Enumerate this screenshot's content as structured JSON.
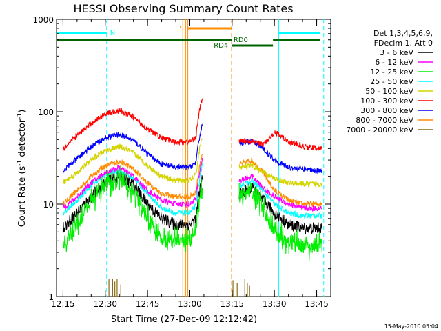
{
  "chart_data": {
    "type": "line",
    "title": "HESSI Observing Summary Count Rates",
    "xlabel": "Start Time (27-Dec-09 12:12:42)",
    "ylabel": "Count Rate (s",
    "ylabel_sup": "-1",
    "ylabel_mid": " detector",
    "ylabel_sup2": "-1",
    "ylabel_end": ")",
    "yscale": "log",
    "ylim": [
      1,
      1000
    ],
    "xlim": [
      "12:12:42",
      "13:50:00"
    ],
    "x_ticks": [
      "12:15",
      "12:30",
      "12:45",
      "13:00",
      "13:15",
      "13:30",
      "13:45"
    ],
    "y_ticks": [
      "1",
      "10",
      "100",
      "1000"
    ],
    "legend_header": [
      "Det 1,3,4,5,6,9,",
      "FDecim 1, Att 0"
    ],
    "footer_date": "15-May-2010 05:04",
    "flags": [
      {
        "name": "N",
        "color": "#00ffff"
      },
      {
        "name": "S",
        "color": "#ff8c00"
      },
      {
        "name": "RD0",
        "color": "#006400"
      },
      {
        "name": "RD4",
        "color": "#006400"
      }
    ],
    "series": [
      {
        "name": "3 - 6 keV",
        "color": "#000000",
        "x": [
          "12:15",
          "12:20",
          "12:25",
          "12:30",
          "12:35",
          "12:40",
          "12:45",
          "12:50",
          "12:55",
          "13:00",
          "13:04",
          "13:18",
          "13:22",
          "13:26",
          "13:30",
          "13:35",
          "13:40",
          "13:47"
        ],
        "y": [
          5.5,
          8,
          12,
          17,
          20,
          16,
          10,
          7,
          6,
          6,
          8,
          13,
          15,
          11,
          8,
          6,
          5.5,
          5.5
        ]
      },
      {
        "name": "6 - 12 keV",
        "color": "#ff00ff",
        "x": [
          "12:15",
          "12:20",
          "12:25",
          "12:30",
          "12:35",
          "12:40",
          "12:45",
          "12:50",
          "12:55",
          "13:00",
          "13:04",
          "13:18",
          "13:22",
          "13:26",
          "13:30",
          "13:35",
          "13:40",
          "13:47"
        ],
        "y": [
          9,
          12,
          17,
          22,
          25,
          20,
          14,
          11,
          10,
          10,
          13,
          18,
          20,
          15,
          12,
          10,
          9,
          9
        ]
      },
      {
        "name": "12 - 25 keV",
        "color": "#00ee00",
        "x": [
          "12:15",
          "12:20",
          "12:25",
          "12:30",
          "12:35",
          "12:40",
          "12:45",
          "12:50",
          "12:55",
          "13:00",
          "13:04",
          "13:18",
          "13:22",
          "13:26",
          "13:30",
          "13:35",
          "13:40",
          "13:47"
        ],
        "y": [
          3.5,
          6,
          11,
          16,
          19,
          14,
          7,
          4,
          4,
          4,
          7,
          12,
          14,
          9,
          5,
          4,
          3.5,
          3.5
        ]
      },
      {
        "name": "25 - 50 keV",
        "color": "#00ffff",
        "x": [
          "12:15",
          "12:20",
          "12:25",
          "12:30",
          "12:35",
          "12:40",
          "12:45",
          "12:50",
          "12:55",
          "13:00",
          "13:04",
          "13:18",
          "13:22",
          "13:26",
          "13:30",
          "13:35",
          "13:40",
          "13:47"
        ],
        "y": [
          8,
          11,
          16,
          21,
          23,
          19,
          13,
          9,
          8,
          8,
          11,
          16,
          18,
          14,
          10,
          8,
          7.5,
          7.5
        ]
      },
      {
        "name": "50 - 100 keV",
        "color": "#d4d400",
        "x": [
          "12:15",
          "12:20",
          "12:25",
          "12:30",
          "12:35",
          "12:40",
          "12:45",
          "12:50",
          "12:55",
          "13:00",
          "13:04",
          "13:18",
          "13:22",
          "13:26",
          "13:30",
          "13:35",
          "13:40",
          "13:47"
        ],
        "y": [
          17,
          22,
          30,
          38,
          42,
          36,
          26,
          20,
          18,
          18,
          23,
          25,
          26,
          22,
          19,
          17,
          16.5,
          16.5
        ]
      },
      {
        "name": "100 - 300 keV",
        "color": "#ff0000",
        "x": [
          "12:15",
          "12:20",
          "12:25",
          "12:30",
          "12:35",
          "12:40",
          "12:45",
          "12:50",
          "12:55",
          "13:00",
          "13:04",
          "13:18",
          "13:22",
          "13:26",
          "13:30",
          "13:35",
          "13:40",
          "13:47"
        ],
        "y": [
          40,
          55,
          75,
          95,
          103,
          88,
          65,
          52,
          47,
          47,
          60,
          48,
          48,
          44,
          60,
          48,
          42,
          40
        ]
      },
      {
        "name": "300 - 800 keV",
        "color": "#0000ff",
        "x": [
          "12:15",
          "12:20",
          "12:25",
          "12:30",
          "12:35",
          "12:40",
          "12:45",
          "12:50",
          "12:55",
          "13:00",
          "13:04",
          "13:18",
          "13:22",
          "13:26",
          "13:30",
          "13:35",
          "13:40",
          "13:47"
        ],
        "y": [
          23,
          31,
          42,
          52,
          57,
          49,
          35,
          27,
          25,
          25,
          31,
          46,
          48,
          40,
          30,
          25,
          24,
          23
        ]
      },
      {
        "name": "800 - 7000 keV",
        "color": "#ff8c00",
        "x": [
          "12:15",
          "12:20",
          "12:25",
          "12:30",
          "12:35",
          "12:40",
          "12:45",
          "12:50",
          "12:55",
          "13:00",
          "13:04",
          "13:18",
          "13:22",
          "13:26",
          "13:30",
          "13:35",
          "13:40",
          "13:47"
        ],
        "y": [
          10,
          14,
          20,
          26,
          29,
          24,
          17,
          13,
          12,
          12,
          15,
          27,
          30,
          22,
          14,
          11,
          10,
          10
        ]
      },
      {
        "name": "7000 - 20000 keV",
        "color": "#8b6914",
        "x": [],
        "y": []
      }
    ]
  }
}
